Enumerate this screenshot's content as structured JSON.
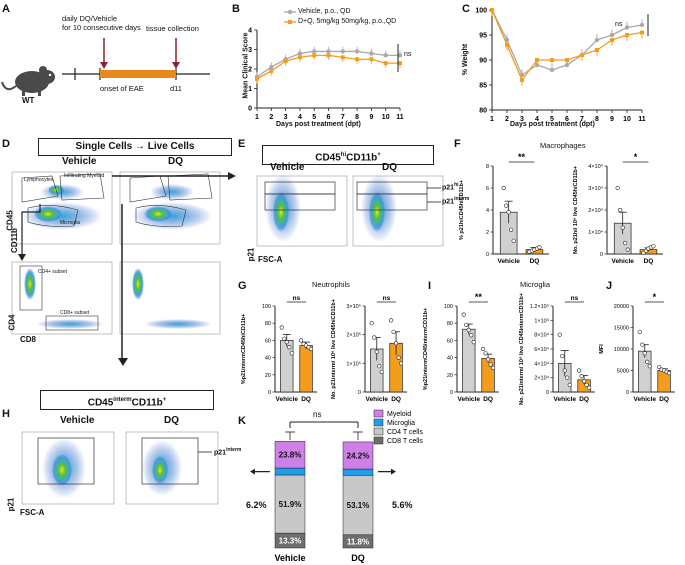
{
  "panelA": {
    "letter": "A",
    "mouse_label": "WT",
    "treatment": "daily DQ/Vehicle\nfor 10 consecutive days",
    "tissue": "tissue collection",
    "onset": "onset of EAE",
    "end": "d11"
  },
  "panelB": {
    "letter": "B",
    "ylabel": "Mean Clinical Score",
    "xlabel": "Days post treatment (dpt)",
    "legend_vehicle": "Vehicle, p.o., QD",
    "legend_dq": "D+Q, 5mg/kg 50mg/kg, p.o.,QD",
    "sig": "ns",
    "yticks": [
      "0",
      "1",
      "2",
      "3",
      "4"
    ],
    "xticks": [
      "1",
      "2",
      "3",
      "4",
      "5",
      "6",
      "7",
      "8",
      "9",
      "10",
      "11"
    ]
  },
  "panelC": {
    "letter": "C",
    "ylabel": "% Weight",
    "xlabel": "Days post treatment (dpt)",
    "sig": "ns",
    "yticks": [
      "80",
      "85",
      "90",
      "95",
      "100"
    ],
    "xticks": [
      "1",
      "2",
      "3",
      "4",
      "5",
      "6",
      "7",
      "8",
      "9",
      "10",
      "11"
    ]
  },
  "panelD": {
    "letter": "D",
    "header": "Single Cells → Live Cells",
    "vehicle": "Vehicle",
    "dq": "DQ",
    "gate_lymph": "Lymphocytes",
    "gate_myeloid": "Infiltrating Myeloid",
    "gate_microglia": "Microglia",
    "gate_cd4": "CD4+ subset",
    "gate_cd8": "CD8+ subset",
    "y1": "CD45",
    "x1": "CD11b",
    "y2": "CD4",
    "x2": "CD8"
  },
  "panelE": {
    "letter": "E",
    "header": "CD45hiCD11b+",
    "vehicle": "Vehicle",
    "dq": "DQ",
    "gate_hi": "p21hi",
    "gate_interm": "p21interm",
    "ylabel": "p21",
    "xlabel": "FSC-A"
  },
  "panelF": {
    "letter": "F",
    "title": "Macrophages",
    "ylabel1": "% p21hiCD45hiCD11b+",
    "ylabel2": "No. p21hi/ 10⁶ live CD45hiCD11b+",
    "sig1": "**",
    "sig2": "*",
    "cat_vehicle": "Vehicle",
    "cat_dq": "DQ"
  },
  "panelG": {
    "letter": "G",
    "title": "Neutrophils",
    "ylabel1": "%p21intermCD45hiCD11b+",
    "ylabel2": "No. p21interm/ 10⁶ live CD45hiCD11b+",
    "sig1": "ns",
    "sig2": "ns",
    "cat_vehicle": "Vehicle",
    "cat_dq": "DQ"
  },
  "panelI": {
    "letter": "I",
    "title": "Microglia",
    "ylabel1": "%p21intermCD45intermCD11b+",
    "ylabel2": "No. p21interm/ 10⁶ live CD45intermCD11b+",
    "sig1": "**",
    "sig2": "ns",
    "cat_vehicle": "Vehicle",
    "cat_dq": "DQ"
  },
  "panelJ": {
    "letter": "J",
    "ylabel": "MFI",
    "sig": "*",
    "cat_vehicle": "Vehicle",
    "cat_dq": "DQ"
  },
  "panelH": {
    "letter": "H",
    "header": "CD45intermCD11b+",
    "vehicle": "Vehicle",
    "dq": "DQ",
    "gate": "p21interm",
    "ylabel": "p21",
    "xlabel": "FSC-A"
  },
  "panelK": {
    "letter": "K",
    "sig": "ns",
    "left_arrow": "6.2%",
    "right_arrow": "5.6%"
  },
  "chart_data": [
    {
      "id": "B",
      "type": "line",
      "title": "",
      "xlabel": "Days post treatment (dpt)",
      "ylabel": "Mean Clinical Score",
      "x": [
        1,
        2,
        3,
        4,
        5,
        6,
        7,
        8,
        9,
        10,
        11
      ],
      "ylim": [
        0,
        4
      ],
      "series": [
        {
          "name": "Vehicle, p.o., QD",
          "color": "#a9a9a9",
          "values": [
            1.6,
            2.1,
            2.5,
            2.8,
            2.9,
            2.9,
            2.9,
            2.9,
            2.8,
            2.7,
            2.7
          ]
        },
        {
          "name": "D+Q, 5mg/kg 50mg/kg, p.o.,QD",
          "color": "#f39c1d",
          "values": [
            1.5,
            1.9,
            2.4,
            2.6,
            2.7,
            2.7,
            2.6,
            2.5,
            2.5,
            2.3,
            2.3
          ]
        }
      ]
    },
    {
      "id": "C",
      "type": "line",
      "title": "",
      "xlabel": "Days post treatment (dpt)",
      "ylabel": "% Weight",
      "x": [
        1,
        2,
        3,
        4,
        5,
        6,
        7,
        8,
        9,
        10,
        11
      ],
      "ylim": [
        80,
        100
      ],
      "series": [
        {
          "name": "Vehicle",
          "color": "#a9a9a9",
          "values": [
            100,
            94,
            87,
            89,
            88,
            89,
            91,
            94,
            95,
            96.5,
            97
          ]
        },
        {
          "name": "DQ",
          "color": "#f39c1d",
          "values": [
            100,
            93,
            86,
            90,
            90,
            90,
            91,
            92,
            94,
            95,
            95.5
          ]
        }
      ]
    },
    {
      "id": "F1",
      "type": "bar",
      "xlabel": "",
      "ylabel": "% p21hiCD45hiCD11b+",
      "categories": [
        "Vehicle",
        "DQ"
      ],
      "values": [
        3.8,
        0.4
      ],
      "error": [
        1.0,
        0.2
      ],
      "ylim": [
        0,
        8
      ],
      "yticks": [
        0,
        2,
        4,
        6,
        8
      ],
      "points": [
        [
          6.0,
          4.4,
          3.8,
          2.2,
          1.2
        ],
        [
          0.2,
          0.3,
          0.4,
          0.5,
          0.6
        ]
      ]
    },
    {
      "id": "F2",
      "type": "bar",
      "xlabel": "",
      "ylabel": "No. p21hi/ 10⁶ live CD45hiCD11b+",
      "categories": [
        "Vehicle",
        "DQ"
      ],
      "values": [
        14000,
        2000
      ],
      "error": [
        5000,
        800
      ],
      "ylim": [
        0,
        40000
      ],
      "yticks": [
        0,
        10000,
        20000,
        30000,
        40000
      ],
      "ytick_labels": [
        "0",
        "1×10⁴",
        "2×10⁴",
        "3×10⁴",
        "4×10⁴"
      ],
      "points": [
        [
          30000,
          20000,
          12000,
          5000,
          2000
        ],
        [
          500,
          1500,
          2500,
          3000,
          3500
        ]
      ]
    },
    {
      "id": "G1",
      "type": "bar",
      "xlabel": "",
      "ylabel": "%p21intermCD45hiCD11b+",
      "categories": [
        "Vehicle",
        "DQ"
      ],
      "values": [
        60,
        54
      ],
      "error": [
        7,
        4
      ],
      "ylim": [
        0,
        100
      ],
      "yticks": [
        0,
        20,
        40,
        60,
        80,
        100
      ],
      "points": [
        [
          75,
          62,
          58,
          52,
          45
        ],
        [
          60,
          56,
          54,
          52,
          50
        ]
      ]
    },
    {
      "id": "G2",
      "type": "bar",
      "xlabel": "",
      "ylabel": "No. p21interm/ 10⁶ live CD45hiCD11b+",
      "categories": [
        "Vehicle",
        "DQ"
      ],
      "values": [
        150000,
        170000
      ],
      "error": [
        40000,
        40000
      ],
      "ylim": [
        0,
        300000
      ],
      "yticks": [
        0,
        100000,
        200000,
        300000
      ],
      "ytick_labels": [
        "0",
        "1×10⁵",
        "2×10⁵",
        "3×10⁵"
      ],
      "points": [
        [
          240000,
          190000,
          140000,
          90000,
          70000
        ],
        [
          250000,
          210000,
          170000,
          120000,
          100000
        ]
      ]
    },
    {
      "id": "I1",
      "type": "bar",
      "xlabel": "",
      "ylabel": "%p21intermCD45intermCD11b+",
      "categories": [
        "Vehicle",
        "DQ"
      ],
      "values": [
        73,
        39
      ],
      "error": [
        6,
        5
      ],
      "ylim": [
        0,
        100
      ],
      "yticks": [
        0,
        20,
        40,
        60,
        80,
        100
      ],
      "points": [
        [
          90,
          78,
          72,
          66,
          58
        ],
        [
          50,
          45,
          38,
          32,
          28
        ]
      ]
    },
    {
      "id": "I2",
      "type": "bar",
      "xlabel": "",
      "ylabel": "No. p21interm/ 10⁶ live CD45intermCD11b+",
      "categories": [
        "Vehicle",
        "DQ"
      ],
      "values": [
        40000,
        17000
      ],
      "error": [
        18000,
        6000
      ],
      "ylim": [
        0,
        120000
      ],
      "yticks": [
        0,
        20000,
        40000,
        60000,
        80000,
        100000,
        120000
      ],
      "ytick_labels": [
        "0",
        "2×10⁴",
        "4×10⁴",
        "6×10⁴",
        "8×10⁴",
        "1×10⁵",
        "1.2×10⁵"
      ],
      "points": [
        [
          80000,
          50000,
          30000,
          20000,
          10000
        ],
        [
          30000,
          22000,
          15000,
          10000,
          6000
        ]
      ]
    },
    {
      "id": "J",
      "type": "bar",
      "xlabel": "",
      "ylabel": "MFI",
      "categories": [
        "Vehicle",
        "DQ"
      ],
      "values": [
        9500,
        5000
      ],
      "error": [
        1500,
        400
      ],
      "ylim": [
        0,
        20000
      ],
      "yticks": [
        0,
        5000,
        10000,
        15000,
        20000
      ],
      "points": [
        [
          14000,
          11000,
          9000,
          7000,
          6000
        ],
        [
          5800,
          5200,
          5000,
          4700,
          4400
        ]
      ]
    },
    {
      "id": "K",
      "type": "bar",
      "stacked": true,
      "xlabel": "",
      "ylabel": "",
      "categories": [
        "Vehicle",
        "DQ"
      ],
      "series": [
        {
          "name": "CD8 T cells",
          "color": "#6e6e6e",
          "values": [
            13.3,
            11.8
          ],
          "labels": [
            "13.3%",
            "11.8%"
          ]
        },
        {
          "name": "CD4 T cells",
          "color": "#c8c8c8",
          "values": [
            51.9,
            53.1
          ],
          "labels": [
            "51.9%",
            "53.1%"
          ]
        },
        {
          "name": "Microglia",
          "color": "#1f9ded",
          "values": [
            6.2,
            5.6
          ],
          "labels": [
            "6.2%",
            "5.6%"
          ]
        },
        {
          "name": "Myeloid",
          "color": "#cf7fe8",
          "values": [
            23.8,
            24.2
          ],
          "labels": [
            "23.8%",
            "24.2%"
          ]
        }
      ],
      "legend": [
        "Myeloid",
        "Microglia",
        "CD4 T cells",
        "CD8 T cells"
      ]
    }
  ]
}
